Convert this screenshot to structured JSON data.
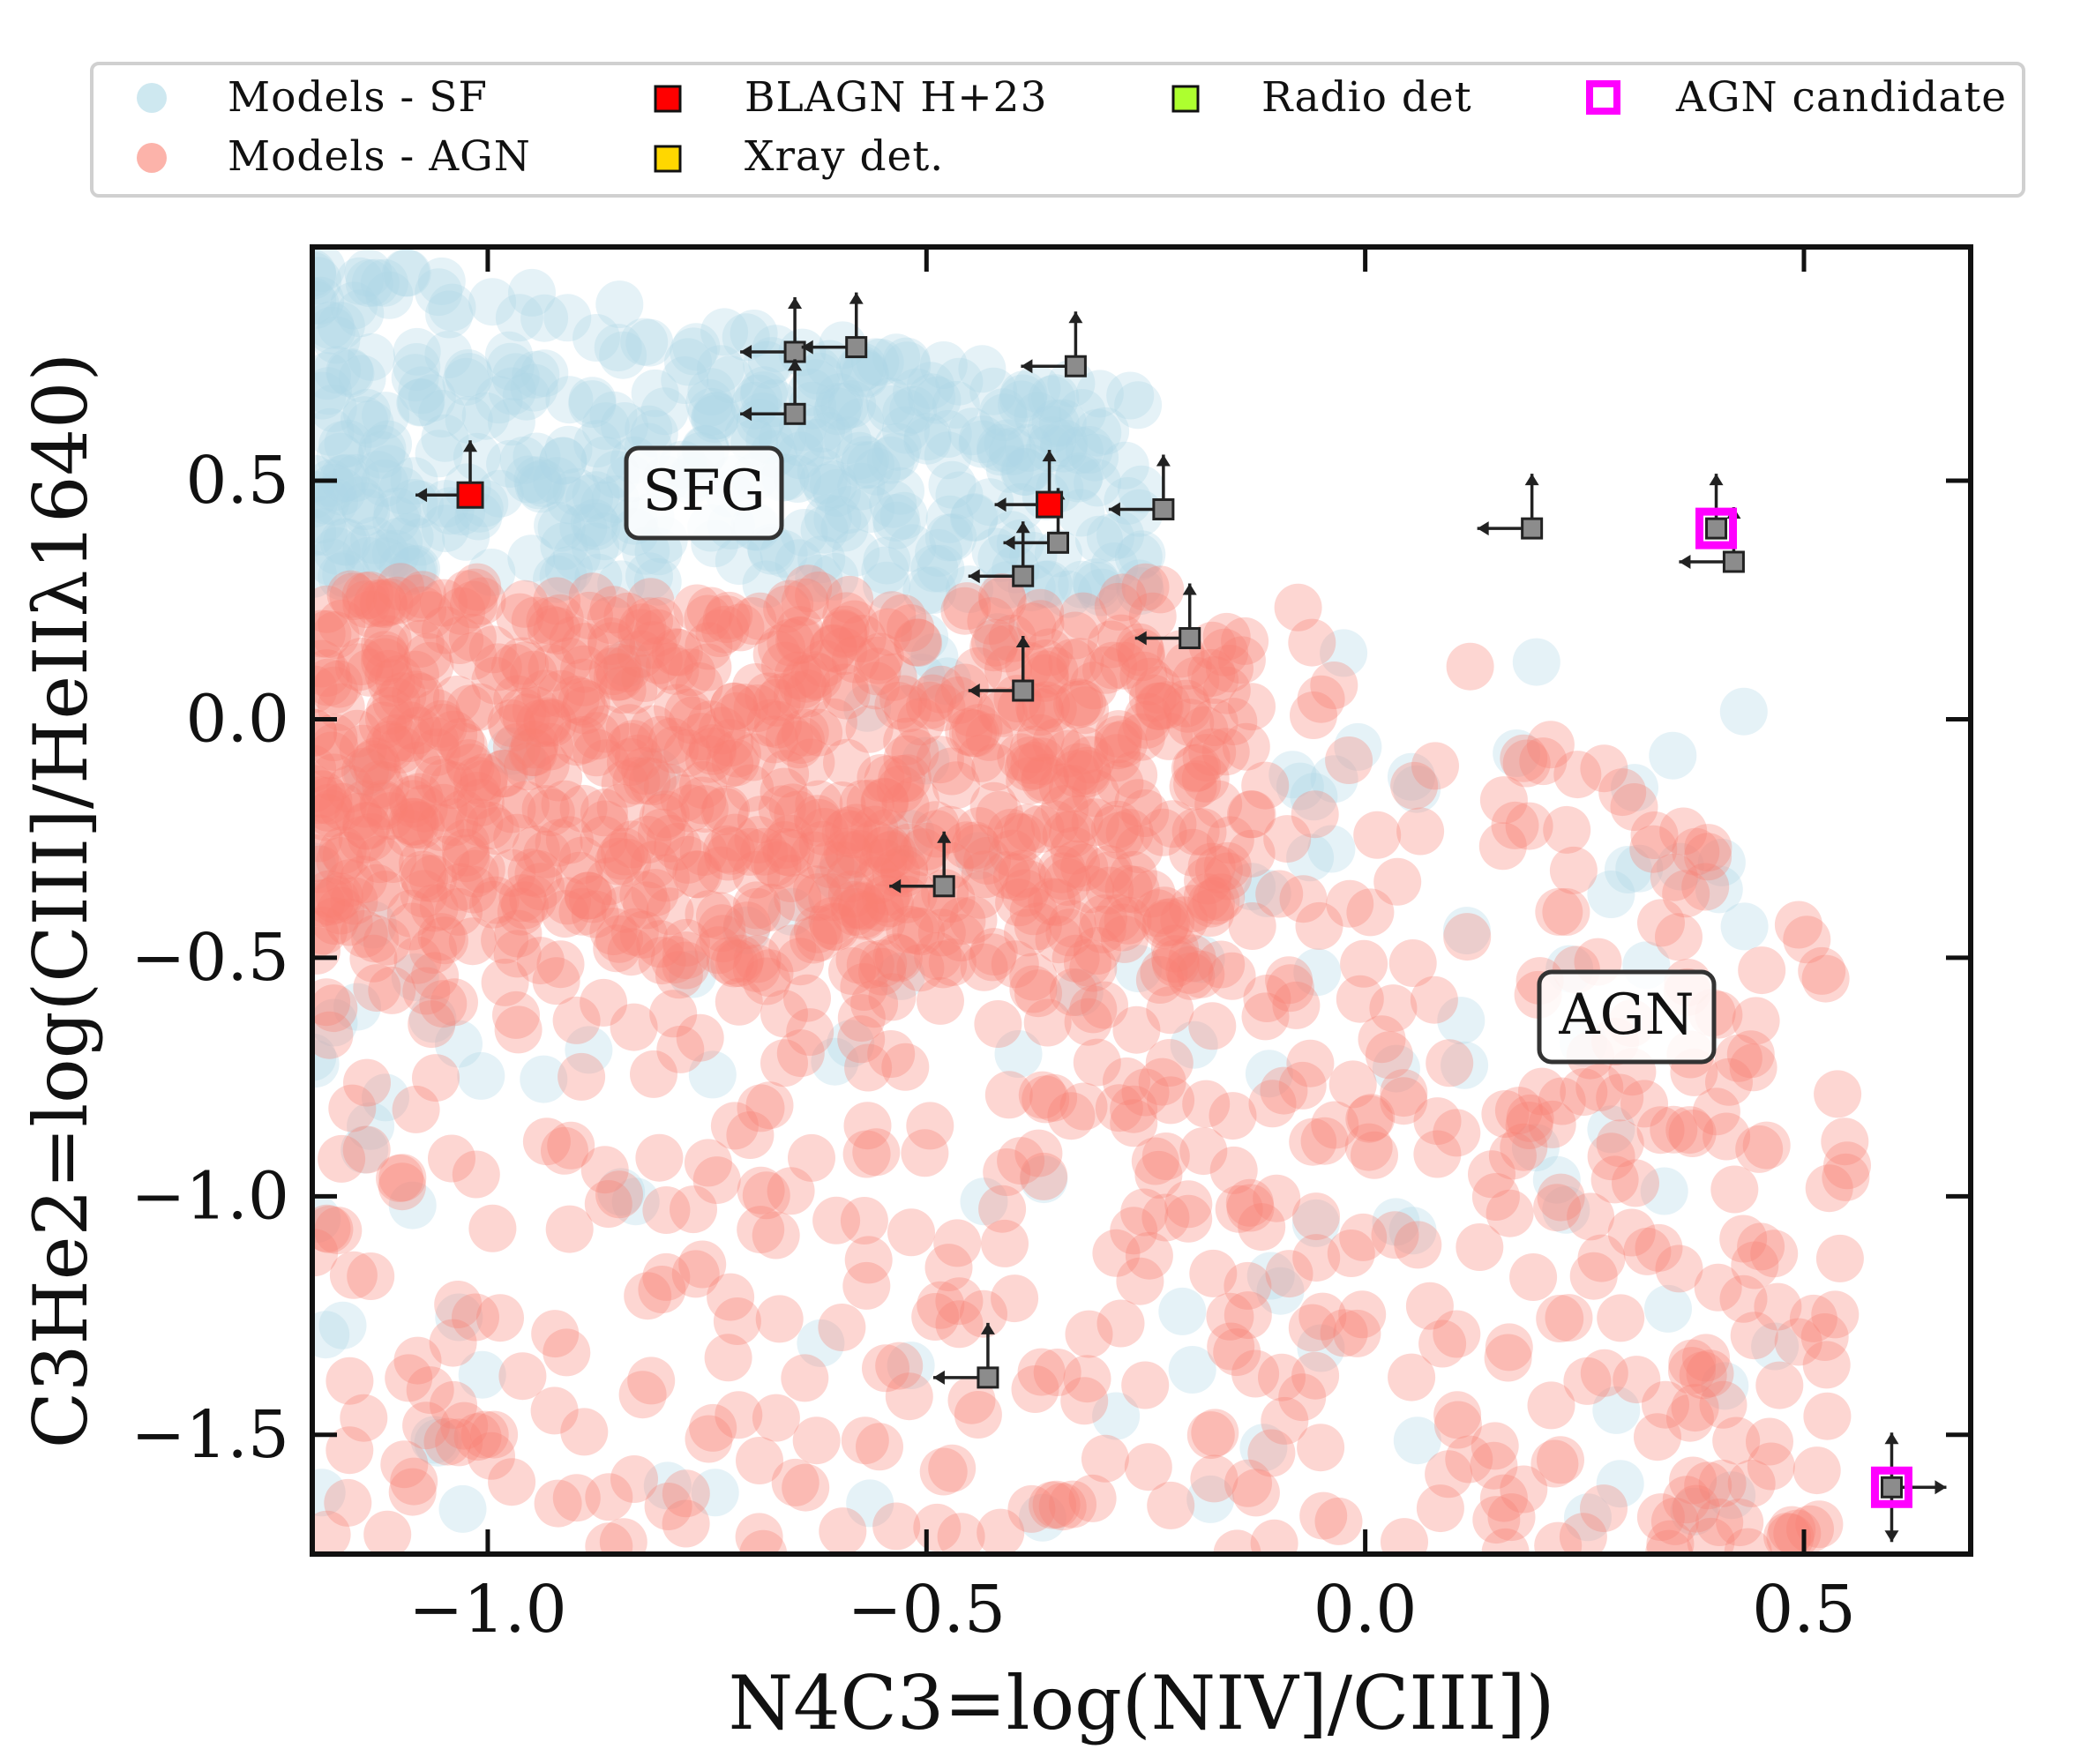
{
  "chart_data": {
    "type": "scatter",
    "xlabel": "N4C3=log(NIV]/CIII])",
    "ylabel": "C3He2=log(CIII]/HeIIλ1640)",
    "xlim": [
      -1.2,
      0.69
    ],
    "ylim": [
      -1.75,
      0.99
    ],
    "x_ticks": [
      -1.0,
      -0.5,
      0.0,
      0.5
    ],
    "y_ticks": [
      -1.5,
      -1.0,
      -0.5,
      0.0,
      0.5
    ],
    "x_tick_labels": [
      "−1.0",
      "−0.5",
      "0.0",
      "0.5"
    ],
    "y_tick_labels": [
      "−1.5",
      "−1.0",
      "−0.5",
      "0.0",
      "0.5"
    ],
    "legend": {
      "placement": "top, outside plot",
      "entries": [
        {
          "label": "Models - SF",
          "marker": "circle",
          "color": "#add8e6"
        },
        {
          "label": "Models - AGN",
          "marker": "circle",
          "color": "#fa8072"
        },
        {
          "label": "BLAGN H+23",
          "marker": "square",
          "color": "#ff0000"
        },
        {
          "label": "Xray det.",
          "marker": "square",
          "color": "#ffd700"
        },
        {
          "label": "Radio det",
          "marker": "square",
          "color": "#adff2f"
        },
        {
          "label": "AGN candidate",
          "marker": "open-square",
          "color": "#ff00ff"
        }
      ]
    },
    "annotations": [
      {
        "text": "SFG",
        "x": -0.75,
        "y": 0.48
      },
      {
        "text": "AGN",
        "x": 0.29,
        "y": -0.61
      }
    ],
    "model_regions": [
      {
        "series": "Models - SF",
        "description": "dense upper-left band",
        "x_range": [
          -1.2,
          -0.3
        ],
        "y_range": [
          0.3,
          0.99
        ]
      },
      {
        "series": "Models - AGN",
        "description": "dense band below SF models, spreading to lower right",
        "x_range": [
          -1.2,
          0.5
        ],
        "y_range": [
          -1.75,
          0.3
        ]
      }
    ],
    "series": [
      {
        "name": "BLAGN H+23",
        "points": [
          {
            "x": -1.02,
            "y": 0.47,
            "upper_x": true,
            "lower_y": true
          },
          {
            "x": -0.36,
            "y": 0.45,
            "upper_x": true,
            "lower_y": true
          }
        ]
      },
      {
        "name": "Limits (grey)",
        "points": [
          {
            "x": -0.65,
            "y": 0.77,
            "upper_x": true,
            "lower_y": true
          },
          {
            "x": -0.58,
            "y": 0.78,
            "upper_x": true,
            "lower_y": true
          },
          {
            "x": -0.65,
            "y": 0.64,
            "upper_x": true,
            "lower_y": true
          },
          {
            "x": -0.33,
            "y": 0.74,
            "upper_x": true,
            "lower_y": true
          },
          {
            "x": -0.23,
            "y": 0.44,
            "upper_x": true,
            "lower_y": true
          },
          {
            "x": -0.35,
            "y": 0.37,
            "upper_x": true,
            "lower_y": true
          },
          {
            "x": -0.39,
            "y": 0.3,
            "upper_x": true,
            "lower_y": true
          },
          {
            "x": -0.2,
            "y": 0.17,
            "upper_x": true,
            "lower_y": true
          },
          {
            "x": -0.39,
            "y": 0.06,
            "upper_x": true,
            "lower_y": true
          },
          {
            "x": -0.48,
            "y": -0.35,
            "upper_x": true,
            "lower_y": true
          },
          {
            "x": -0.43,
            "y": -1.38,
            "upper_x": true,
            "lower_y": true
          },
          {
            "x": 0.19,
            "y": 0.4,
            "upper_x": true,
            "lower_y": true
          },
          {
            "x": 0.42,
            "y": 0.33,
            "upper_x": true,
            "lower_y": true
          }
        ]
      },
      {
        "name": "AGN candidate",
        "points": [
          {
            "x": 0.4,
            "y": 0.4,
            "lower_y": true
          },
          {
            "x": 0.6,
            "y": -1.61,
            "lower_x": true,
            "upper_y": true,
            "lower_y": true
          }
        ]
      }
    ]
  }
}
